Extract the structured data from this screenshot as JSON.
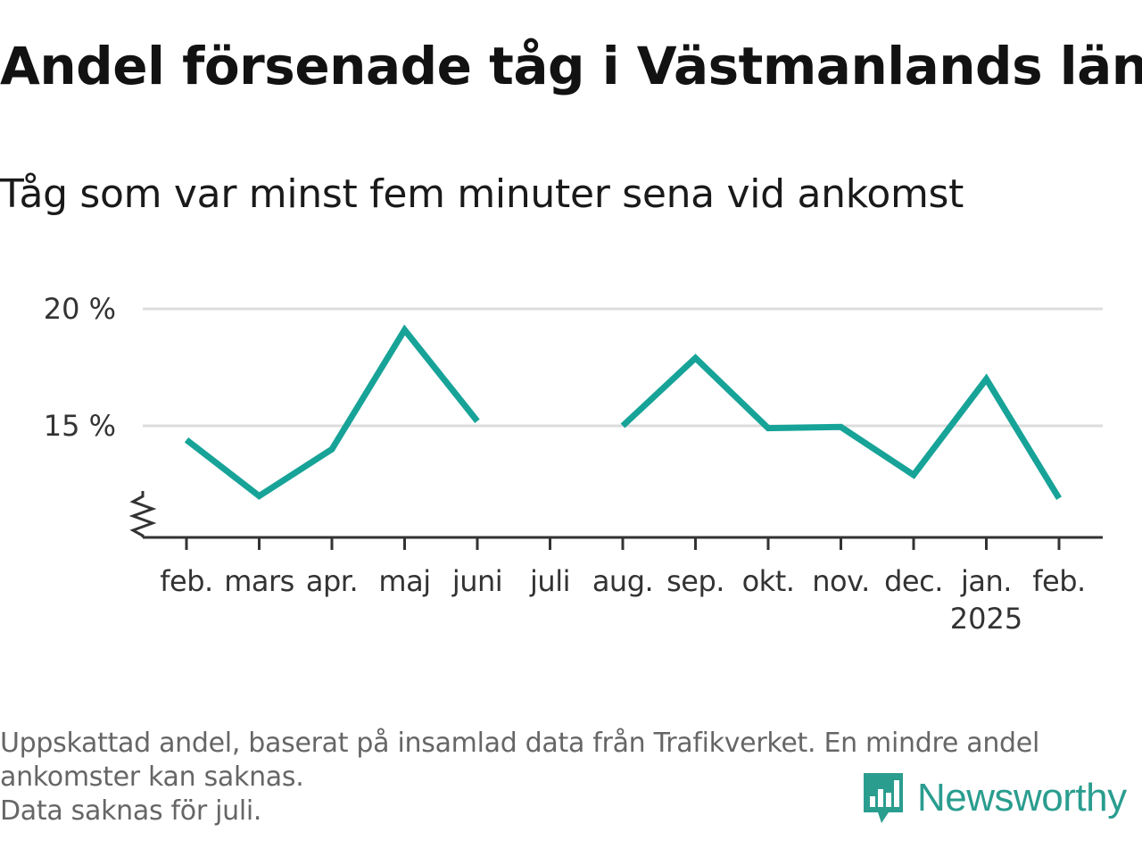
{
  "header": {
    "title": "Andel försenade tåg i Västmanlands län",
    "subtitle": "Tåg som var minst fem minuter sena vid ankomst"
  },
  "chart_data": {
    "type": "line",
    "categories": [
      "feb.",
      "mars",
      "apr.",
      "maj",
      "juni",
      "juli",
      "aug.",
      "sep.",
      "okt.",
      "nov.",
      "dec.",
      "jan.",
      "feb."
    ],
    "year_labels": [
      "",
      "",
      "",
      "",
      "",
      "",
      "",
      "",
      "",
      "",
      "",
      "2025",
      ""
    ],
    "series": [
      {
        "values": [
          14.4,
          12.0,
          14.0,
          19.1,
          15.2,
          null,
          15.0,
          17.9,
          14.9,
          14.95,
          12.9,
          17.0,
          11.9
        ]
      }
    ],
    "yticks": [
      15,
      20
    ],
    "ytick_labels": [
      "15 %",
      "20 %"
    ],
    "ylim": [
      10.3,
      20
    ],
    "y_axis_break": true,
    "grid": true,
    "legend": "none",
    "line_color": "#17a398"
  },
  "footer": {
    "notes": [
      "Uppskattad andel, baserat på insamlad data från Trafikverket. En mindre andel",
      "ankomster kan saknas.",
      "Data saknas för juli."
    ],
    "brand": "Newsworthy",
    "brand_color": "#2a9d8f",
    "brand_icon": "newsworthy-bar-chart-icon"
  }
}
